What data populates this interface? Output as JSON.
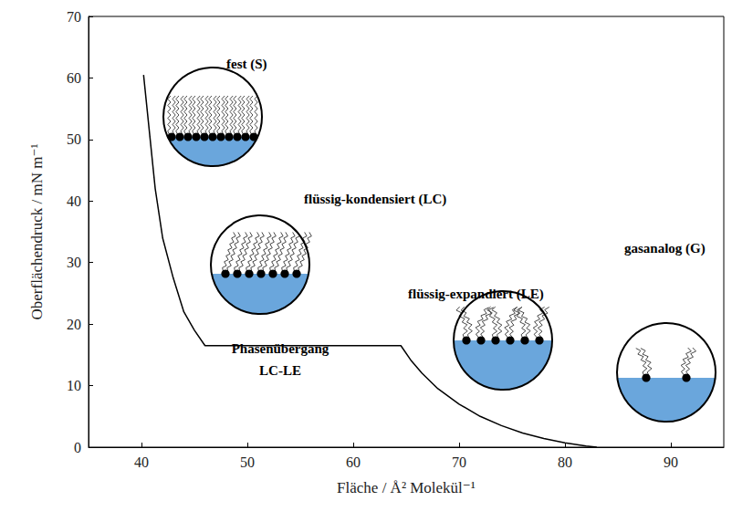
{
  "chart_data": {
    "type": "line",
    "x_label": "Fläche / Å² Molekül⁻¹",
    "y_label": "Oberflächendruck / mN m⁻¹",
    "x": [
      40.2,
      41.3,
      42,
      43,
      44,
      45,
      46,
      64.5,
      65.5,
      66.5,
      68,
      70,
      72,
      74,
      76,
      78,
      80,
      82,
      83
    ],
    "values": [
      60.5,
      42,
      34,
      27.5,
      22,
      19,
      16.5,
      16.5,
      14,
      12,
      9.5,
      7,
      5,
      3.5,
      2.3,
      1.4,
      0.7,
      0.2,
      0
    ],
    "color": "#000000",
    "marker": "none",
    "line_style": "solid",
    "xlim": [
      35,
      95
    ],
    "ylim": [
      0,
      70
    ],
    "xticks": [
      40,
      50,
      60,
      70,
      80,
      90
    ],
    "yticks": [
      0,
      10,
      20,
      30,
      40,
      50,
      60,
      70
    ],
    "grid": false,
    "annotations": [
      "fest (S)",
      "flüssig-kondensiert (LC)",
      "flüssig-expandiert (LE)",
      "gasanalog (G)",
      "Phasenübergang\nLC-LE"
    ]
  }
}
